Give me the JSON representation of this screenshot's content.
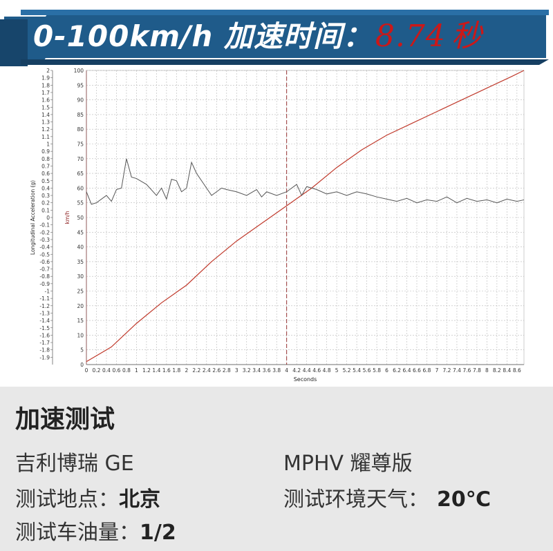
{
  "banner": {
    "title": "0-100km/h 加速时间：",
    "value": "8.74",
    "unit": "秒"
  },
  "chart_data": {
    "type": "line",
    "xlabel": "Seconds",
    "y1label": "Longitudinal Acceleration (g)",
    "y2label": "km/h",
    "xlim": [
      0,
      8.74
    ],
    "y1lim": [
      -2,
      2
    ],
    "y2lim": [
      0,
      100
    ],
    "x_ticks": [
      "0",
      "0.2",
      "0.4",
      "0.6",
      "0.8",
      "1",
      "1.2",
      "1.4",
      "1.6",
      "1.8",
      "2",
      "2.2",
      "2.4",
      "2.6",
      "2.8",
      "3",
      "3.2",
      "3.4",
      "3.6",
      "3.8",
      "4",
      "4.2",
      "4.4",
      "4.6",
      "4.8",
      "5",
      "5.2",
      "5.4",
      "5.6",
      "5.8",
      "6",
      "6.2",
      "6.4",
      "6.6",
      "6.8",
      "7",
      "7.2",
      "7.4",
      "7.6",
      "7.8",
      "8",
      "8.2",
      "8.4",
      "8.6"
    ],
    "y1_ticks": [
      "2",
      "1.9",
      "1.8",
      "1.7",
      "1.6",
      "1.5",
      "1.4",
      "1.3",
      "1.2",
      "1.1",
      "1",
      "0.9",
      "0.8",
      "0.7",
      "0.6",
      "0.5",
      "0.4",
      "0.3",
      "0.2",
      "0.1",
      "0",
      "-0.1",
      "-0.2",
      "-0.3",
      "-0.4",
      "-0.5",
      "-0.6",
      "-0.7",
      "-0.8",
      "-0.9",
      "-1",
      "-1.1",
      "-1.2",
      "-1.3",
      "-1.4",
      "-1.5",
      "-1.6",
      "-1.7",
      "-1.8",
      "-1.9"
    ],
    "y2_ticks": [
      "100",
      "95",
      "90",
      "85",
      "80",
      "75",
      "70",
      "65",
      "60",
      "55",
      "50",
      "45",
      "40",
      "35",
      "30",
      "25",
      "20",
      "15",
      "10",
      "5",
      "0"
    ],
    "marker_x": 4.0,
    "series": [
      {
        "color": "#c0392b",
        "x": [
          0,
          0.5,
          1.0,
          1.5,
          2.0,
          2.5,
          3.0,
          3.5,
          4.0,
          4.5,
          5.0,
          5.5,
          6.0,
          6.5,
          7.0,
          7.5,
          8.0,
          8.5,
          8.74
        ],
        "y": [
          1,
          6,
          14,
          21,
          27,
          35,
          42,
          48,
          54,
          60,
          67,
          73,
          78,
          82,
          86,
          90,
          94,
          98,
          100
        ]
      },
      {
        "color": "#555555",
        "x": [
          0,
          0.1,
          0.2,
          0.4,
          0.5,
          0.6,
          0.7,
          0.8,
          0.9,
          1.0,
          1.2,
          1.4,
          1.5,
          1.6,
          1.7,
          1.8,
          1.9,
          2.0,
          2.1,
          2.2,
          2.4,
          2.5,
          2.6,
          2.7,
          2.8,
          3.0,
          3.2,
          3.4,
          3.5,
          3.6,
          3.8,
          4.0,
          4.2,
          4.3,
          4.4,
          4.6,
          4.8,
          5.0,
          5.2,
          5.4,
          5.6,
          5.8,
          6.0,
          6.2,
          6.4,
          6.6,
          6.8,
          7.0,
          7.2,
          7.4,
          7.6,
          7.8,
          8.0,
          8.2,
          8.4,
          8.6,
          8.74
        ],
        "y": [
          0.35,
          0.18,
          0.2,
          0.3,
          0.22,
          0.38,
          0.4,
          0.8,
          0.55,
          0.53,
          0.45,
          0.3,
          0.4,
          0.25,
          0.52,
          0.5,
          0.35,
          0.4,
          0.75,
          0.6,
          0.4,
          0.3,
          0.35,
          0.4,
          0.38,
          0.35,
          0.3,
          0.38,
          0.28,
          0.35,
          0.3,
          0.35,
          0.45,
          0.3,
          0.42,
          0.38,
          0.32,
          0.35,
          0.3,
          0.35,
          0.32,
          0.28,
          0.25,
          0.22,
          0.26,
          0.2,
          0.24,
          0.22,
          0.28,
          0.2,
          0.26,
          0.22,
          0.24,
          0.2,
          0.25,
          0.22,
          0.24
        ]
      }
    ]
  },
  "info": {
    "section_title": "加速测试",
    "model": "吉利博瑞 GE",
    "trim": "MPHV 耀尊版",
    "location_label": "测试地点：",
    "location_value": "北京",
    "weather_label": "测试环境天气：",
    "weather_value": "20℃",
    "fuel_label": "测试车油量：",
    "fuel_value": "1/2"
  }
}
